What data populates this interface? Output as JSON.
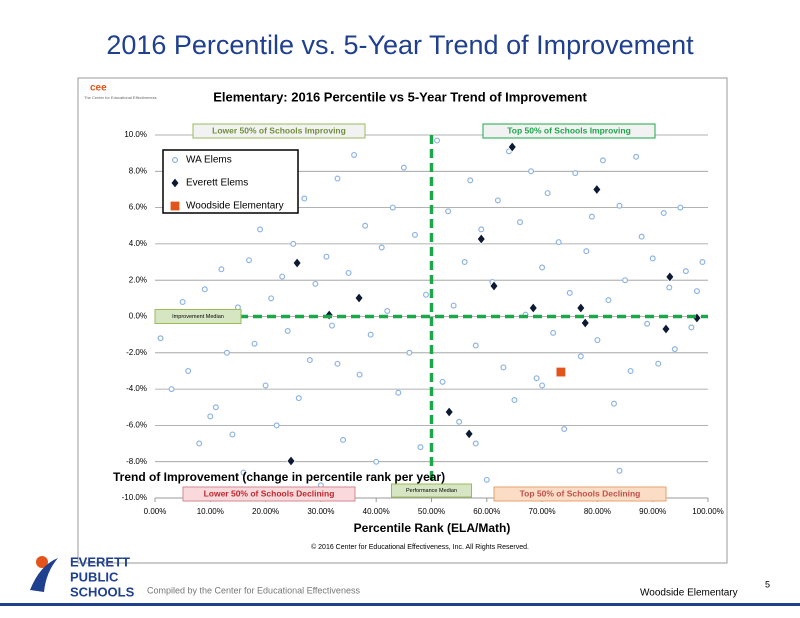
{
  "slide_title": "2016 Percentile vs. 5-Year Trend of Improvement",
  "footer": {
    "logo": [
      "EVERETT",
      "PUBLIC",
      "SCHOOLS"
    ],
    "compiled": "Compiled by the Center for Educational Effectiveness",
    "school": "Woodside Elementary",
    "page": "5"
  },
  "chart_data": {
    "type": "scatter",
    "title": "Elementary: 2016 Percentile vs 5-Year Trend of Improvement",
    "source_logo": "cee",
    "source_name": "The Center for Educational Effectiveness",
    "xlabel": "Percentile Rank (ELA/Math)",
    "ylabel": "Trend of Improvement (change in percentile rank per year)",
    "copyright": "© 2016 Center for Educational Effectiveness, Inc. All Rights Reserved.",
    "quadrant_labels": [
      "Lower 50% of Schools Improving",
      "Top 50% of Schools Improving",
      "Lower 50% of Schools Declining",
      "Top 50% of Schools Declining"
    ],
    "improvement_median": 0,
    "performance_median": 50,
    "improvement_median_label": "Improvement Median",
    "performance_median_label": "Performance Median",
    "xlim": [
      0,
      100
    ],
    "ylim": [
      -10,
      10
    ],
    "xticks": [
      {
        "value": 0,
        "label": "0.00%"
      },
      {
        "value": 10,
        "label": "10.00%"
      },
      {
        "value": 20,
        "label": "20.00%"
      },
      {
        "value": 30,
        "label": "30.00%"
      },
      {
        "value": 40,
        "label": "40.00%"
      },
      {
        "value": 50,
        "label": "50.00%"
      },
      {
        "value": 60,
        "label": "60.00%"
      },
      {
        "value": 70,
        "label": "70.00%"
      },
      {
        "value": 80,
        "label": "80.00%"
      },
      {
        "value": 90,
        "label": "90.00%"
      },
      {
        "value": 100,
        "label": "100.00%"
      }
    ],
    "yticks": [
      {
        "value": -10,
        "label": "-10.0%"
      },
      {
        "value": -8,
        "label": "-8.0%"
      },
      {
        "value": -6,
        "label": "-6.0%"
      },
      {
        "value": -4,
        "label": "-4.0%"
      },
      {
        "value": -2,
        "label": "-2.0%"
      },
      {
        "value": 0,
        "label": "0.0%"
      },
      {
        "value": 2,
        "label": "2.0%"
      },
      {
        "value": 4,
        "label": "4.0%"
      },
      {
        "value": 6,
        "label": "6.0%"
      },
      {
        "value": 8,
        "label": "8.0%"
      },
      {
        "value": 10,
        "label": "10.0%"
      }
    ],
    "grid": true,
    "series": [
      {
        "name": "WA Elems",
        "color": "#8fb4e3",
        "marker": "circle",
        "x": [
          1,
          3,
          5,
          6,
          8,
          9,
          10,
          12,
          13,
          14,
          15,
          16,
          17,
          18,
          19,
          20,
          21,
          22,
          23,
          24,
          25,
          26,
          27,
          28,
          29,
          30,
          31,
          32,
          33,
          34,
          35,
          36,
          37,
          38,
          39,
          40,
          41,
          42,
          43,
          44,
          45,
          46,
          47,
          48,
          49,
          51,
          52,
          53,
          54,
          55,
          56,
          57,
          58,
          59,
          60,
          61,
          62,
          63,
          64,
          65,
          66,
          67,
          68,
          69,
          70,
          71,
          72,
          73,
          74,
          75,
          76,
          77,
          78,
          79,
          80,
          81,
          82,
          83,
          84,
          85,
          86,
          87,
          88,
          89,
          90,
          91,
          92,
          93,
          94,
          95,
          96,
          97,
          98,
          99,
          11,
          33,
          47,
          58,
          70,
          84
        ],
        "values": [
          -1.2,
          -4.0,
          0.8,
          -3.0,
          -7.0,
          1.5,
          -5.5,
          2.6,
          -2.0,
          -6.5,
          0.5,
          -8.6,
          3.1,
          -1.5,
          4.8,
          -3.8,
          1.0,
          -6.0,
          2.2,
          -0.8,
          4.0,
          -4.5,
          6.5,
          -2.4,
          1.8,
          -9.3,
          3.3,
          -0.5,
          7.6,
          -6.8,
          2.4,
          8.9,
          -3.2,
          5.0,
          -1.0,
          -8.0,
          3.8,
          0.3,
          6.0,
          -4.2,
          8.2,
          -2.0,
          4.5,
          -7.2,
          1.2,
          9.7,
          -3.6,
          5.8,
          0.6,
          -5.8,
          3.0,
          7.5,
          -1.6,
          4.8,
          -9.0,
          1.9,
          6.4,
          -2.8,
          9.1,
          -4.6,
          5.2,
          0.1,
          8.0,
          -3.4,
          2.7,
          6.8,
          -0.9,
          4.1,
          -6.2,
          1.3,
          7.9,
          -2.2,
          3.6,
          5.5,
          -1.3,
          8.6,
          0.9,
          -4.8,
          6.1,
          2.0,
          -3.0,
          8.8,
          4.4,
          -0.4,
          3.2,
          -2.6,
          5.7,
          1.6,
          -1.8,
          6.0,
          2.5,
          -0.6,
          1.4,
          3.0,
          -5.0,
          -2.6,
          -9.6,
          -7.0,
          -3.8,
          -8.5
        ]
      },
      {
        "name": "Everett Elems",
        "color": "#0d1a33",
        "marker": "diamond",
        "x": [
          64.6,
          79.9,
          25.7,
          59.0,
          61.3,
          36.9,
          31.5,
          68.4,
          77.0,
          77.8,
          93.1,
          92.4,
          98.0,
          53.2,
          56.8,
          24.6
        ],
        "values": [
          9.34,
          7.0,
          2.95,
          4.27,
          1.68,
          1.02,
          0.08,
          0.47,
          0.47,
          -0.36,
          2.18,
          -0.69,
          -0.08,
          -5.26,
          -6.47,
          -7.96
        ]
      },
      {
        "name": "Woodside Elementary",
        "color": "#e2541b",
        "marker": "square",
        "x": [
          73.4
        ],
        "values": [
          -3.06
        ]
      }
    ]
  }
}
